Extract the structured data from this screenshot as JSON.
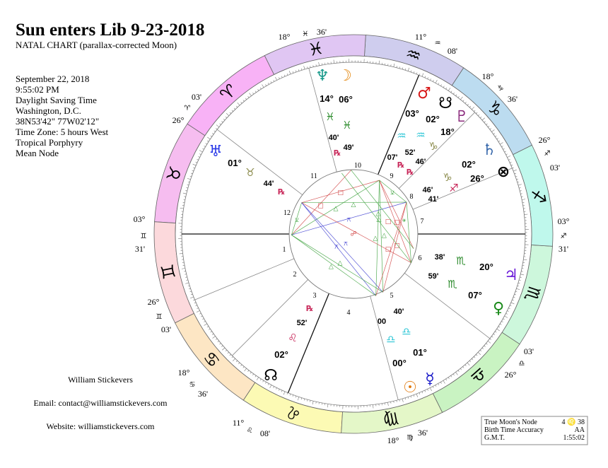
{
  "header": {
    "title": "Sun enters Lib 9-23-2018",
    "subtitle": "NATAL CHART (parallax-corrected Moon)"
  },
  "info": {
    "lines": [
      "September 22, 2018",
      "9:55:02 PM",
      "Daylight Saving Time",
      "Washington, D.C.",
      "38N53'42\"  77W02'12\"",
      "Time Zone: 5 hours West",
      "Tropical Porphyry",
      "Mean Node"
    ]
  },
  "footer": {
    "name": "William Stickevers",
    "email": "Email: contact@williamstickevers.com",
    "website": "Website: williamstickevers.com"
  },
  "box": {
    "rows": [
      {
        "label": "True Moon's Node",
        "value": "4 ♌ 38"
      },
      {
        "label": "Birth Time Accuracy",
        "value": "AA"
      },
      {
        "label": "G.M.T.",
        "value": "1:55:02"
      }
    ]
  },
  "wheel": {
    "signs": [
      {
        "name": "aries",
        "glyph": "♈",
        "color": "#f8b2f6"
      },
      {
        "name": "taurus",
        "glyph": "♉",
        "color": "#f6bdf0"
      },
      {
        "name": "gemini",
        "glyph": "♊",
        "color": "#fcd9dc"
      },
      {
        "name": "cancer",
        "glyph": "♋",
        "color": "#fde6c4"
      },
      {
        "name": "leo",
        "glyph": "♌",
        "color": "#fcfab4"
      },
      {
        "name": "virgo",
        "glyph": "♍",
        "color": "#e4f7c8"
      },
      {
        "name": "libra",
        "glyph": "♎",
        "color": "#c9f3c2"
      },
      {
        "name": "scorpio",
        "glyph": "♏",
        "color": "#cdf7dc"
      },
      {
        "name": "sagittarius",
        "glyph": "♐",
        "color": "#bff8ec"
      },
      {
        "name": "capricorn",
        "glyph": "♑",
        "color": "#bcdcf0"
      },
      {
        "name": "aquarius",
        "glyph": "♒",
        "color": "#cfcdee"
      },
      {
        "name": "pisces",
        "glyph": "♓",
        "color": "#e0c6f3"
      }
    ],
    "cusps": [
      {
        "house": "1",
        "deg": "03°",
        "sign": "♊",
        "min": "31'"
      },
      {
        "house": "2",
        "deg": "26°",
        "sign": "♊",
        "min": "03'"
      },
      {
        "house": "3",
        "deg": "18°",
        "sign": "♋",
        "min": "36'"
      },
      {
        "house": "4",
        "deg": "11°",
        "sign": "♌",
        "min": "08'"
      },
      {
        "house": "5",
        "deg": "18°",
        "sign": "♍",
        "min": "36'"
      },
      {
        "house": "6",
        "deg": "26°",
        "sign": "♎",
        "min": "03'"
      },
      {
        "house": "7",
        "deg": "03°",
        "sign": "♐",
        "min": "31'"
      },
      {
        "house": "8",
        "deg": "26°",
        "sign": "♐",
        "min": "03'"
      },
      {
        "house": "9",
        "deg": "18°",
        "sign": "♑",
        "min": "36'"
      },
      {
        "house": "10",
        "deg": "11°",
        "sign": "♒",
        "min": "08'"
      },
      {
        "house": "11",
        "deg": "18°",
        "sign": "♓",
        "min": "36'"
      },
      {
        "house": "12",
        "deg": "26°",
        "sign": "♈",
        "min": "03'"
      }
    ],
    "planets": [
      {
        "name": "neptune",
        "glyph": "♆",
        "color": "#17998a",
        "deg": "14°",
        "sign": "♓",
        "sign_color": "#2a8a2a",
        "min": "40'",
        "retro": "℞"
      },
      {
        "name": "moon",
        "glyph": "☽",
        "color": "#e48a14",
        "deg": "06°",
        "sign": "♓",
        "sign_color": "#2a8a2a",
        "min": "49'",
        "retro": ""
      },
      {
        "name": "mars",
        "glyph": "♂",
        "color": "#d81818",
        "deg": "03°",
        "sign": "♒",
        "sign_color": "#2ec6d6",
        "min": "07'",
        "retro": ""
      },
      {
        "name": "south-node",
        "glyph": "☋",
        "color": "#000000",
        "deg": "02°",
        "sign": "♒",
        "sign_color": "#2ec6d6",
        "min": "52'",
        "retro": "℞"
      },
      {
        "name": "pluto",
        "glyph": "♇",
        "color": "#8a2a7c",
        "deg": "18°",
        "sign": "♑",
        "sign_color": "#8a8a4a",
        "min": "46'",
        "retro": "℞"
      },
      {
        "name": "saturn",
        "glyph": "♄",
        "color": "#3a6aac",
        "deg": "02°",
        "sign": "♑",
        "sign_color": "#8a8a4a",
        "min": "46'",
        "retro": ""
      },
      {
        "name": "part-of-fortune",
        "glyph": "⊗",
        "color": "#000000",
        "deg": "26°",
        "sign": "♐",
        "sign_color": "#c8285a",
        "min": "41'",
        "retro": ""
      },
      {
        "name": "jupiter",
        "glyph": "♃",
        "color": "#6a18d8",
        "deg": "20°",
        "sign": "♏",
        "sign_color": "#2a8a2a",
        "min": "38'",
        "retro": ""
      },
      {
        "name": "venus",
        "glyph": "♀",
        "color": "#1a8a1a",
        "deg": "07°",
        "sign": "♏",
        "sign_color": "#2a8a2a",
        "min": "59'",
        "retro": ""
      },
      {
        "name": "sun",
        "glyph": "☉",
        "color": "#e07a10",
        "deg": "00°",
        "sign": "♎",
        "sign_color": "#2ec6d6",
        "min": "00",
        "retro": ""
      },
      {
        "name": "mercury",
        "glyph": "☿",
        "color": "#1a1ac8",
        "deg": "01°",
        "sign": "♎",
        "sign_color": "#2ec6d6",
        "min": "40'",
        "retro": ""
      },
      {
        "name": "north-node",
        "glyph": "☊",
        "color": "#000000",
        "deg": "02°",
        "sign": "♌",
        "sign_color": "#c8285a",
        "min": "52'",
        "retro": "℞"
      },
      {
        "name": "uranus",
        "glyph": "♅",
        "color": "#2a3ae8",
        "deg": "01°",
        "sign": "♉",
        "sign_color": "#8a8a4a",
        "min": "44'",
        "retro": "℞"
      }
    ],
    "retro_color": "#c8285a",
    "aspects": [
      {
        "symbol": "△",
        "color": "#3aa03a"
      },
      {
        "symbol": "□",
        "color": "#d04040"
      },
      {
        "symbol": "□",
        "color": "#d04040"
      },
      {
        "symbol": "△",
        "color": "#3aa03a"
      },
      {
        "symbol": "⚺",
        "color": "#3aa03a"
      },
      {
        "symbol": "⚻",
        "color": "#3a3ad0"
      },
      {
        "symbol": "☍",
        "color": "#d04040"
      },
      {
        "symbol": "⚻",
        "color": "#3a3ad0"
      },
      {
        "symbol": "⚻",
        "color": "#3a3ad0"
      },
      {
        "symbol": "△",
        "color": "#3aa03a"
      },
      {
        "symbol": "△",
        "color": "#3aa03a"
      },
      {
        "symbol": "△",
        "color": "#3aa03a"
      },
      {
        "symbol": "△",
        "color": "#3aa03a"
      },
      {
        "symbol": "□",
        "color": "#d04040"
      },
      {
        "symbol": "□",
        "color": "#d04040"
      },
      {
        "symbol": "□",
        "color": "#d04040"
      },
      {
        "symbol": "□",
        "color": "#d04040"
      },
      {
        "symbol": "⚹",
        "color": "#3aa03a"
      },
      {
        "symbol": "△",
        "color": "#3aa03a"
      },
      {
        "symbol": "△",
        "color": "#3aa03a"
      },
      {
        "symbol": "⚺",
        "color": "#3aa03a"
      }
    ]
  }
}
